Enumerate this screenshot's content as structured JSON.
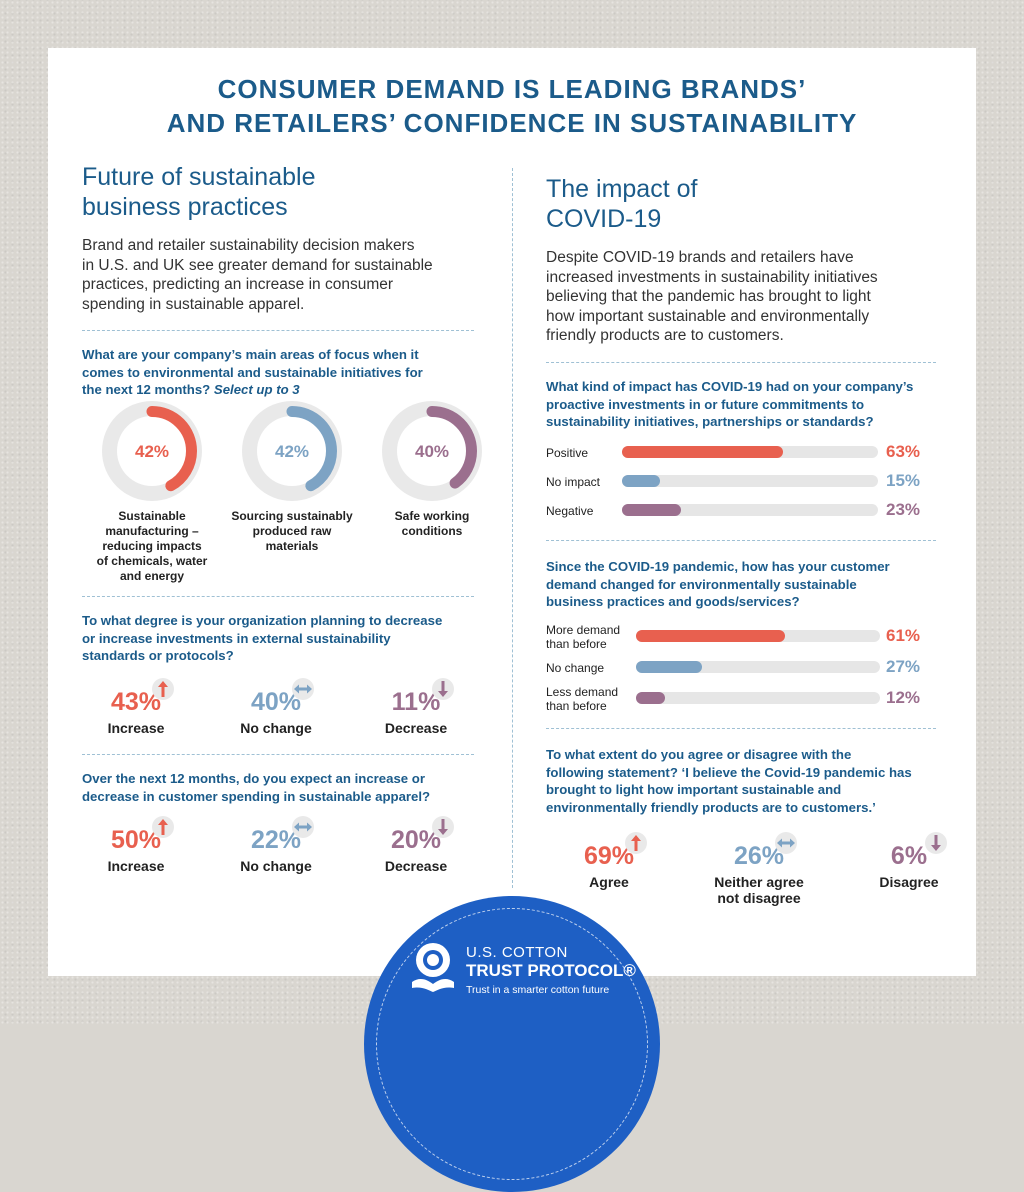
{
  "title_line1": "CONSUMER DEMAND IS LEADING BRANDS’",
  "title_line2": "AND RETAILERS’ CONFIDENCE IN SUSTAINABILITY",
  "colors": {
    "red": "#e8604f",
    "blue": "#7da3c4",
    "purple": "#9b6f8e",
    "navy": "#1b5b8a",
    "track": "#e6e6e6"
  },
  "left": {
    "title_line1": "Future of sustainable",
    "title_line2": "business practices",
    "intro_lines": [
      "Brand and retailer sustainability decision makers",
      "in U.S. and UK see greater demand for sustainable",
      "practices, predicting an increase in consumer",
      "spending in sustainable apparel."
    ],
    "q1_lines": [
      "What are your company’s main areas of focus when it",
      "comes to environmental and sustainable initiatives for"
    ],
    "q1_line3": "the next 12 months?",
    "q1_select": "Select up to 3",
    "q2_lines": [
      "To what degree is your organization planning to decrease",
      "or increase investments in external sustainability",
      "standards or protocols?"
    ],
    "q3_lines": [
      "Over the next 12 months, do you expect an increase or",
      "decrease in customer spending in sustainable apparel?"
    ]
  },
  "right": {
    "title_line1": "The impact of",
    "title_line2": "COVID-19",
    "intro_lines": [
      "Despite COVID-19 brands and retailers have",
      "increased investments in sustainability initiatives",
      "believing that the pandemic has brought to light",
      "how important sustainable and environmentally",
      "friendly products are to customers."
    ],
    "q4_lines": [
      "What kind of impact has COVID-19 had on your company’s",
      "proactive investments in or future commitments to",
      "sustainability initiatives, partnerships or standards?"
    ],
    "q5_lines": [
      "Since the COVID-19 pandemic, how has your customer",
      "demand changed for environmentally sustainable",
      "business practices and goods/services?"
    ],
    "q6_lines": [
      "To what extent do you agree or disagree with the",
      "following statement? ‘I believe the Covid-19 pandemic has",
      "brought to light how important sustainable and",
      "environmentally friendly products are to customers.’"
    ]
  },
  "chart_data": [
    {
      "type": "pie",
      "id": "focus-areas",
      "categories": [
        [
          "Sustainable",
          "manufacturing –",
          "reducing impacts",
          "of chemicals, water",
          "and energy"
        ],
        [
          "Sourcing sustainably",
          "produced raw",
          "materials"
        ],
        [
          "Safe working",
          "conditions"
        ]
      ],
      "values": [
        42,
        42,
        40
      ],
      "value_labels": [
        "42%",
        "42%",
        "40%"
      ],
      "colors": [
        "#e8604f",
        "#7da3c4",
        "#9b6f8e"
      ]
    },
    {
      "type": "table",
      "id": "investments-standards",
      "categories": [
        "Increase",
        "No change",
        "Decrease"
      ],
      "values": [
        43,
        40,
        11
      ],
      "value_labels": [
        "43%",
        "40%",
        "11%"
      ],
      "arrows": [
        "up",
        "both",
        "down"
      ]
    },
    {
      "type": "table",
      "id": "customer-spending",
      "categories": [
        "Increase",
        "No change",
        "Decrease"
      ],
      "values": [
        50,
        22,
        20
      ],
      "value_labels": [
        "50%",
        "22%",
        "20%"
      ],
      "arrows": [
        "up",
        "both",
        "down"
      ]
    },
    {
      "type": "bar",
      "id": "covid-impact",
      "categories": [
        [
          "Positive"
        ],
        [
          "No impact"
        ],
        [
          "Negative"
        ]
      ],
      "values": [
        63,
        15,
        23
      ],
      "value_labels": [
        "63%",
        "15%",
        "23%"
      ],
      "xlim": [
        0,
        100
      ]
    },
    {
      "type": "bar",
      "id": "customer-demand",
      "categories": [
        [
          "More demand",
          "than before"
        ],
        [
          "No change"
        ],
        [
          "Less demand",
          "than before"
        ]
      ],
      "values": [
        61,
        27,
        12
      ],
      "value_labels": [
        "61%",
        "27%",
        "12%"
      ],
      "xlim": [
        0,
        100
      ]
    },
    {
      "type": "table",
      "id": "agreement",
      "categories": [
        [
          "Agree"
        ],
        [
          "Neither agree",
          "not disagree"
        ],
        [
          "Disagree"
        ]
      ],
      "values": [
        69,
        26,
        6
      ],
      "value_labels": [
        "69%",
        "26%",
        "6%"
      ],
      "arrows": [
        "up",
        "both",
        "down"
      ]
    }
  ],
  "footer": {
    "logo_line1": "U.S. COTTON",
    "logo_line2": "TRUST PROTOCOL®",
    "tagline": "Trust in a smarter cotton future"
  }
}
